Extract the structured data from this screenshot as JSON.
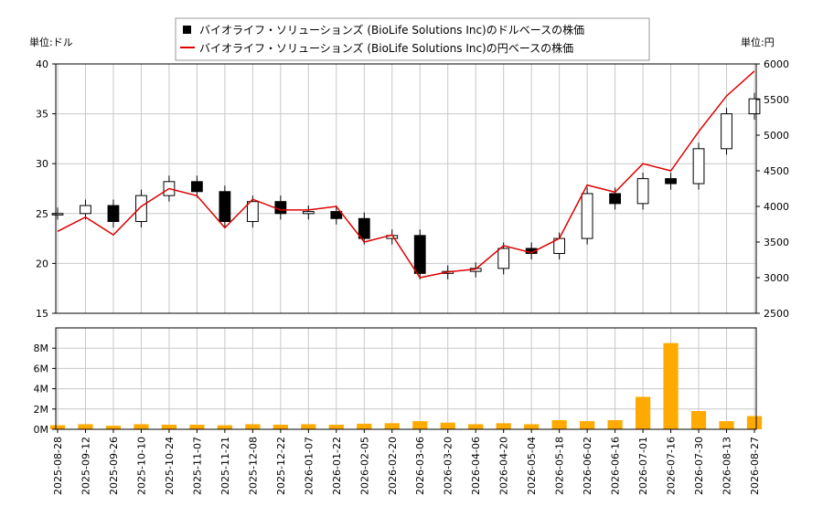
{
  "units": {
    "left": "単位:ドル",
    "right": "単位:円"
  },
  "legend": [
    {
      "label": "バイオライフ・ソリューションズ (BioLife Solutions Inc)のドルベースの株価",
      "color": "#000000",
      "marker": "square"
    },
    {
      "label": "バイオライフ・ソリューションズ (BioLife Solutions Inc)の円ベースの株価",
      "color": "#dd0000",
      "marker": "line"
    }
  ],
  "colors": {
    "grid": "#c8c8c8",
    "volume": "#ffaa00",
    "candle": "#000000",
    "yen_line": "#dd0000"
  },
  "chart_data": {
    "type": "line",
    "price_axis": {
      "left_ylim": [
        15,
        40
      ],
      "left_ticks": [
        15,
        20,
        25,
        30,
        35,
        40
      ],
      "right_ylim": [
        2500,
        6000
      ],
      "right_ticks": [
        2500,
        3000,
        3500,
        4000,
        4500,
        5000,
        5500,
        6000
      ]
    },
    "volume_axis": {
      "ylim": [
        0,
        10000000
      ],
      "ticks": [
        0,
        2000000,
        4000000,
        6000000,
        8000000
      ],
      "tick_labels": [
        "0M",
        "2M",
        "4M",
        "6M",
        "8M"
      ]
    },
    "x_dates": [
      "2025-08-28",
      "2025-09-12",
      "2025-09-26",
      "2025-10-10",
      "2025-10-24",
      "2025-11-07",
      "2025-11-21",
      "2025-12-08",
      "2025-12-22",
      "2026-01-07",
      "2026-01-22",
      "2026-02-05",
      "2026-02-20",
      "2026-03-06",
      "2026-03-20",
      "2026-04-06",
      "2026-04-20",
      "2026-05-04",
      "2026-05-18",
      "2026-06-02",
      "2026-06-16",
      "2026-07-01",
      "2026-07-16",
      "2026-07-30",
      "2026-08-13",
      "2026-08-27"
    ],
    "grid": true,
    "series": [
      {
        "name": "バイオライフ・ソリューションズ (BioLife Solutions Inc)のドルベースの株価",
        "kind": "candlestick",
        "axis": "left",
        "close": [
          25.0,
          25.8,
          24.2,
          26.8,
          28.2,
          27.2,
          24.2,
          26.2,
          25.0,
          25.2,
          24.5,
          22.5,
          22.8,
          19.0,
          19.2,
          19.5,
          21.5,
          21.0,
          22.5,
          27.0,
          26.0,
          28.5,
          28.0,
          31.5,
          35.0,
          36.5
        ]
      },
      {
        "name": "バイオライフ・ソリューションズ (BioLife Solutions Inc)の円ベースの株価",
        "kind": "line",
        "axis": "right",
        "values": [
          3650,
          3850,
          3600,
          4000,
          4250,
          4150,
          3700,
          4100,
          3950,
          3950,
          4000,
          3500,
          3600,
          3000,
          3080,
          3120,
          3450,
          3350,
          3550,
          4300,
          4200,
          4600,
          4500,
          5050,
          5550,
          5900
        ]
      }
    ],
    "volume": [
      400000,
      500000,
      350000,
      500000,
      450000,
      450000,
      400000,
      500000,
      450000,
      500000,
      450000,
      550000,
      600000,
      800000,
      650000,
      500000,
      600000,
      500000,
      900000,
      800000,
      900000,
      3200000,
      8500000,
      1800000,
      800000,
      1300000
    ]
  }
}
